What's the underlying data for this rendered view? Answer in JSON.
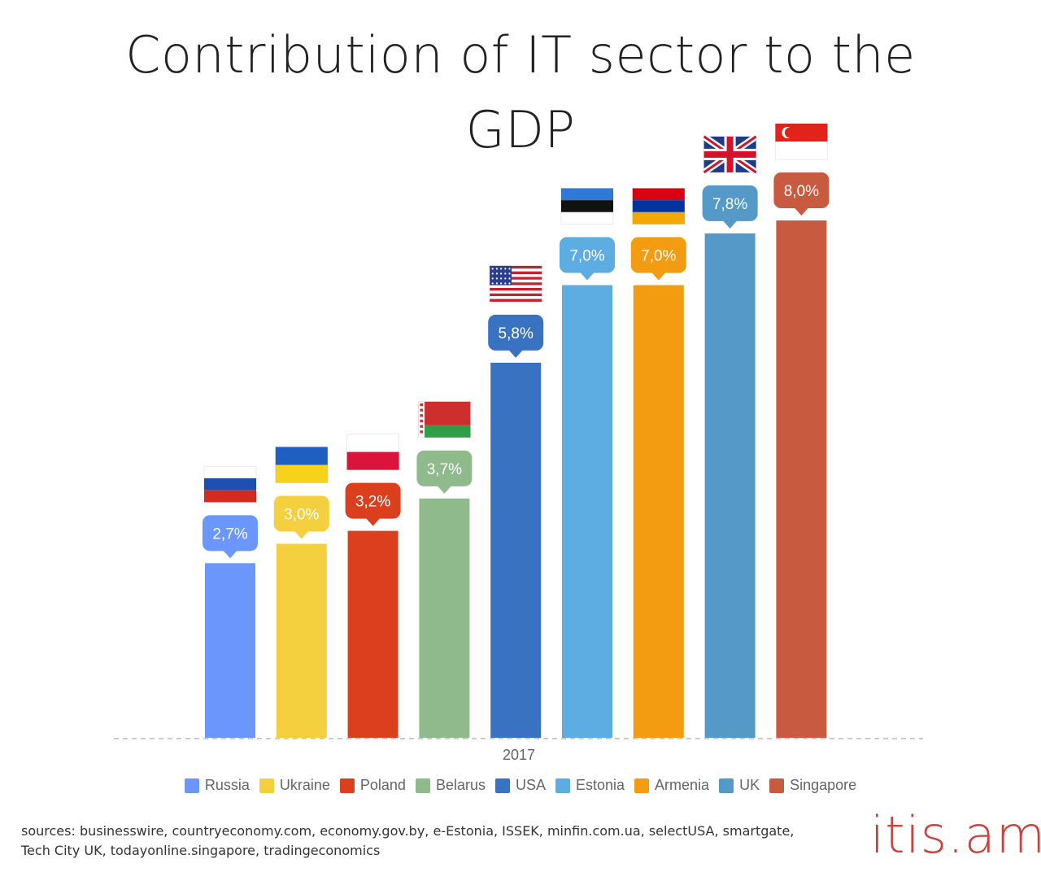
{
  "title": "Contribution of IT sector to the GDP",
  "sources": "sources: businesswire, countryeconomy.com, economy.gov.by, e-Estonia, ISSEK, minfin.com.ua, selectUSA, smartgate, Tech City UK, todayonline.singapore, tradingeconomics",
  "brand": "itis.am",
  "chart_data": {
    "type": "bar",
    "categories": [
      "2017"
    ],
    "ylim": [
      0,
      8.0
    ],
    "grid": false,
    "legend_position": "bottom",
    "series": [
      {
        "name": "Russia",
        "value": 2.7,
        "label": "2,7%",
        "color": "#6b96fb",
        "flag": "russia-flag-icon"
      },
      {
        "name": "Ukraine",
        "value": 3.0,
        "label": "3,0%",
        "color": "#f4d03f",
        "flag": "ukraine-flag-icon"
      },
      {
        "name": "Poland",
        "value": 3.2,
        "label": "3,2%",
        "color": "#db3f1e",
        "flag": "poland-flag-icon"
      },
      {
        "name": "Belarus",
        "value": 3.7,
        "label": "3,7%",
        "color": "#8fbb8c",
        "flag": "belarus-flag-icon"
      },
      {
        "name": "USA",
        "value": 5.8,
        "label": "5,8%",
        "color": "#3a72c2",
        "flag": "usa-flag-icon"
      },
      {
        "name": "Estonia",
        "value": 7.0,
        "label": "7,0%",
        "color": "#5dade2",
        "flag": "estonia-flag-icon"
      },
      {
        "name": "Armenia",
        "value": 7.0,
        "label": "7,0%",
        "color": "#f39c12",
        "flag": "armenia-flag-icon"
      },
      {
        "name": "UK",
        "value": 7.8,
        "label": "7,8%",
        "color": "#5499c7",
        "flag": "uk-flag-icon"
      },
      {
        "name": "Singapore",
        "value": 8.0,
        "label": "8,0%",
        "color": "#c85a40",
        "flag": "singapore-flag-icon"
      }
    ]
  }
}
